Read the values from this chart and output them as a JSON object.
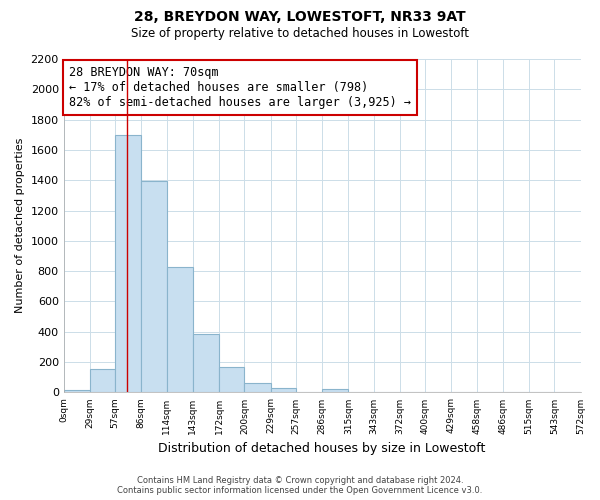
{
  "title": "28, BREYDON WAY, LOWESTOFT, NR33 9AT",
  "subtitle": "Size of property relative to detached houses in Lowestoft",
  "xlabel": "Distribution of detached houses by size in Lowestoft",
  "ylabel": "Number of detached properties",
  "bar_edges": [
    0,
    29,
    57,
    86,
    114,
    143,
    172,
    200,
    229,
    257,
    286,
    315,
    343,
    372,
    400,
    429,
    458,
    486,
    515,
    543,
    572
  ],
  "bar_heights": [
    15,
    155,
    1700,
    1395,
    830,
    385,
    165,
    65,
    30,
    0,
    25,
    0,
    0,
    0,
    0,
    0,
    0,
    0,
    0,
    0
  ],
  "bar_color": "#c8dff0",
  "bar_edge_color": "#8ab4cc",
  "property_line_x": 70,
  "property_line_color": "#cc0000",
  "annotation_text_line1": "28 BREYDON WAY: 70sqm",
  "annotation_text_line2": "← 17% of detached houses are smaller (798)",
  "annotation_text_line3": "82% of semi-detached houses are larger (3,925) →",
  "ylim": [
    0,
    2200
  ],
  "yticks": [
    0,
    200,
    400,
    600,
    800,
    1000,
    1200,
    1400,
    1600,
    1800,
    2000,
    2200
  ],
  "xtick_labels": [
    "0sqm",
    "29sqm",
    "57sqm",
    "86sqm",
    "114sqm",
    "143sqm",
    "172sqm",
    "200sqm",
    "229sqm",
    "257sqm",
    "286sqm",
    "315sqm",
    "343sqm",
    "372sqm",
    "400sqm",
    "429sqm",
    "458sqm",
    "486sqm",
    "515sqm",
    "543sqm",
    "572sqm"
  ],
  "grid_color": "#ccdde8",
  "background_color": "#ffffff",
  "footnote_line1": "Contains HM Land Registry data © Crown copyright and database right 2024.",
  "footnote_line2": "Contains public sector information licensed under the Open Government Licence v3.0."
}
